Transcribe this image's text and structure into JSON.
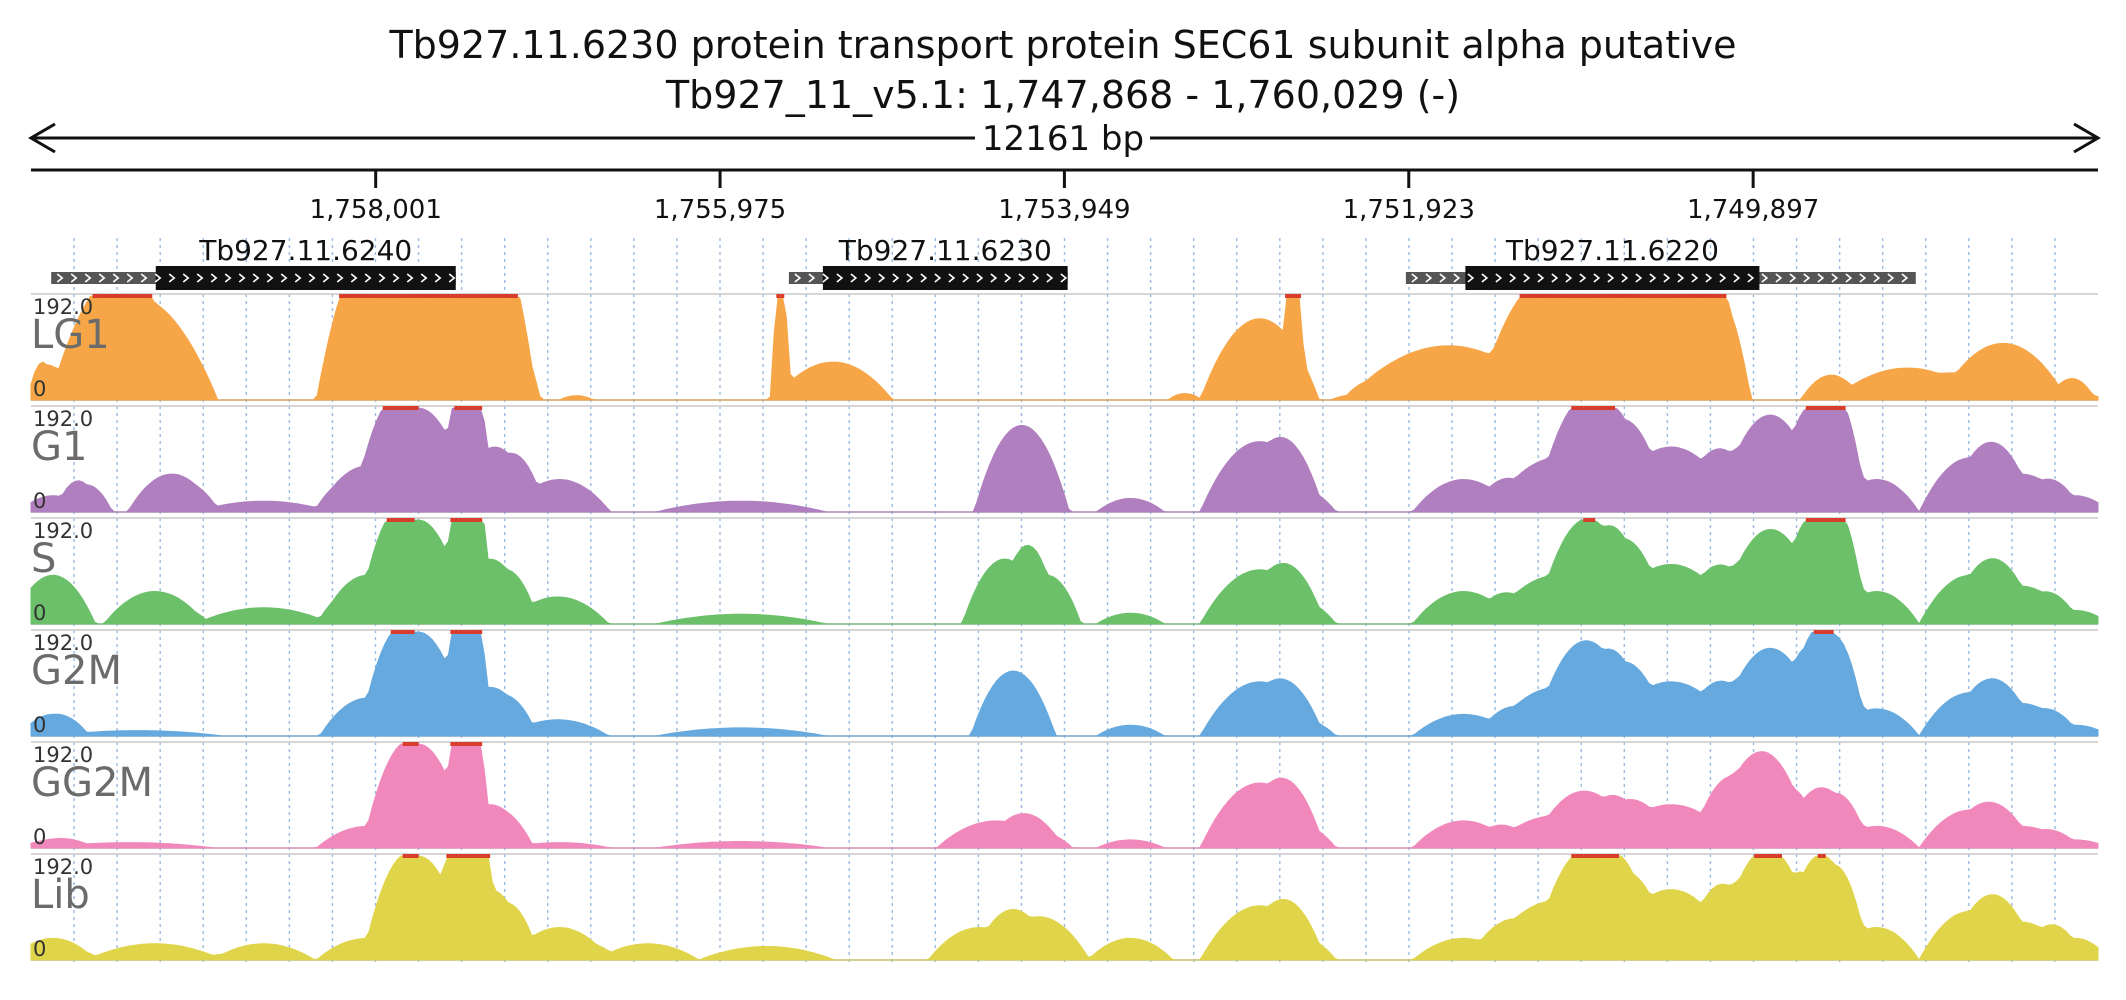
{
  "title": {
    "line1": "Tb927.11.6230  protein transport protein SEC61 subunit alpha  putative",
    "line2": "Tb927_11_v5.1: 1,747,868 - 1,760,029 (-)"
  },
  "span_label": "12161 bp",
  "ticks": [
    {
      "label": "1,758,001",
      "pos": 1758001
    },
    {
      "label": "1,755,975",
      "pos": 1755975
    },
    {
      "label": "1,753,949",
      "pos": 1753949
    },
    {
      "label": "1,751,923",
      "pos": 1751923
    },
    {
      "label": "1,749,897",
      "pos": 1749897
    }
  ],
  "region": {
    "start": 1747868,
    "end": 1760029,
    "strand": "-"
  },
  "genes": [
    {
      "name": "Tb927.11.6240",
      "cds_start": 1757530,
      "cds_end": 1759295,
      "utr_start": 1757530,
      "utr_end": 1759910
    },
    {
      "name": "Tb927.11.6230",
      "cds_start": 1753930,
      "cds_end": 1755370,
      "utr_start": 1753930,
      "utr_end": 1755570
    },
    {
      "name": "Tb927.11.6220",
      "cds_start": 1749860,
      "cds_end": 1751590,
      "utr_start": 1748940,
      "utr_end": 1751940
    }
  ],
  "scale": {
    "max_label": "192.0",
    "min_label": "0"
  },
  "tracks": [
    {
      "name": "LG1",
      "color": "#f6a646"
    },
    {
      "name": "G1",
      "color": "#b07fbf"
    },
    {
      "name": "S",
      "color": "#6cc06a"
    },
    {
      "name": "G2M",
      "color": "#66a9de"
    },
    {
      "name": "GG2M",
      "color": "#f188bb"
    },
    {
      "name": "Lib",
      "color": "#e0d54a"
    }
  ],
  "colors": {
    "overflow": "#d83b2a",
    "gridline": "#9bbbe0",
    "gene_box": "#111111",
    "utr_box": "#555555"
  },
  "chart_data": {
    "type": "area",
    "xlabel": "",
    "ylabel": "",
    "xlim": [
      1760029,
      1747868
    ],
    "ylim": [
      0,
      192
    ],
    "series": [
      {
        "name": "LG1",
        "peaks": [
          [
            1759960,
            70,
            90
          ],
          [
            1759600,
            50,
            300
          ],
          [
            1759430,
            192,
            500
          ],
          [
            1758000,
            300,
            350
          ],
          [
            1757700,
            150,
            500
          ],
          [
            1757480,
            192,
            400
          ],
          [
            1757330,
            192,
            300
          ],
          [
            1756820,
            8,
            100
          ],
          [
            1755620,
            192,
            60
          ],
          [
            1755310,
            70,
            350
          ],
          [
            1753240,
            12,
            100
          ],
          [
            1752800,
            150,
            350
          ],
          [
            1752600,
            192,
            60
          ],
          [
            1752280,
            8,
            100
          ],
          [
            1751690,
            100,
            600
          ],
          [
            1751050,
            110,
            400
          ],
          [
            1750720,
            160,
            700
          ],
          [
            1750500,
            192,
            300
          ],
          [
            1750110,
            192,
            200
          ],
          [
            1749470,
            30,
            150
          ],
          [
            1749060,
            15,
            250
          ],
          [
            1748710,
            50,
            900
          ],
          [
            1748400,
            60,
            300
          ],
          [
            1748000,
            20,
            100
          ]
        ]
      },
      {
        "name": "G1",
        "peaks": [
          [
            1759900,
            30,
            200
          ],
          [
            1759700,
            50,
            150
          ],
          [
            1759200,
            70,
            260
          ],
          [
            1758660,
            20,
            400
          ],
          [
            1758050,
            85,
            300
          ],
          [
            1757750,
            192,
            330
          ],
          [
            1757460,
            160,
            120
          ],
          [
            1757300,
            120,
            250
          ],
          [
            1756920,
            60,
            300
          ],
          [
            1755850,
            20,
            500
          ],
          [
            1754200,
            160,
            280
          ],
          [
            1753560,
            25,
            200
          ],
          [
            1752800,
            130,
            350
          ],
          [
            1752550,
            40,
            200
          ],
          [
            1751600,
            60,
            300
          ],
          [
            1751050,
            100,
            400
          ],
          [
            1750800,
            140,
            300
          ],
          [
            1750380,
            120,
            400
          ],
          [
            1749900,
            100,
            300
          ],
          [
            1749630,
            110,
            400
          ],
          [
            1749460,
            150,
            200
          ],
          [
            1749170,
            60,
            250
          ],
          [
            1748620,
            100,
            300
          ],
          [
            1748320,
            70,
            300
          ],
          [
            1748000,
            30,
            200
          ]
        ]
      },
      {
        "name": "S",
        "peaks": [
          [
            1759900,
            90,
            250
          ],
          [
            1759300,
            60,
            300
          ],
          [
            1758660,
            30,
            400
          ],
          [
            1758050,
            90,
            280
          ],
          [
            1757750,
            192,
            300
          ],
          [
            1757460,
            192,
            120
          ],
          [
            1757330,
            120,
            250
          ],
          [
            1756930,
            50,
            300
          ],
          [
            1755850,
            18,
            500
          ],
          [
            1754300,
            120,
            250
          ],
          [
            1754050,
            90,
            200
          ],
          [
            1753560,
            20,
            200
          ],
          [
            1752800,
            100,
            350
          ],
          [
            1752550,
            40,
            200
          ],
          [
            1751600,
            60,
            300
          ],
          [
            1751050,
            90,
            400
          ],
          [
            1750800,
            130,
            300
          ],
          [
            1750380,
            110,
            400
          ],
          [
            1749900,
            95,
            300
          ],
          [
            1749630,
            110,
            400
          ],
          [
            1749460,
            150,
            200
          ],
          [
            1749170,
            60,
            250
          ],
          [
            1748620,
            90,
            300
          ],
          [
            1748320,
            70,
            300
          ],
          [
            1748000,
            25,
            200
          ]
        ]
      },
      {
        "name": "G2M",
        "peaks": [
          [
            1759900,
            40,
            200
          ],
          [
            1759400,
            10,
            500
          ],
          [
            1758050,
            70,
            280
          ],
          [
            1757750,
            192,
            300
          ],
          [
            1757460,
            180,
            120
          ],
          [
            1757330,
            90,
            250
          ],
          [
            1756930,
            30,
            300
          ],
          [
            1755850,
            15,
            500
          ],
          [
            1754250,
            120,
            250
          ],
          [
            1753560,
            20,
            200
          ],
          [
            1752800,
            100,
            350
          ],
          [
            1752550,
            30,
            200
          ],
          [
            1751600,
            40,
            300
          ],
          [
            1751050,
            90,
            400
          ],
          [
            1750800,
            110,
            300
          ],
          [
            1750380,
            100,
            400
          ],
          [
            1749900,
            90,
            300
          ],
          [
            1749630,
            100,
            400
          ],
          [
            1749460,
            120,
            200
          ],
          [
            1749170,
            50,
            250
          ],
          [
            1748620,
            80,
            300
          ],
          [
            1748320,
            60,
            300
          ],
          [
            1748000,
            20,
            200
          ]
        ]
      },
      {
        "name": "GG2M",
        "peaks": [
          [
            1759900,
            15,
            200
          ],
          [
            1759450,
            10,
            500
          ],
          [
            1758050,
            40,
            300
          ],
          [
            1757750,
            192,
            300
          ],
          [
            1757460,
            192,
            120
          ],
          [
            1757330,
            80,
            250
          ],
          [
            1756920,
            10,
            300
          ],
          [
            1755850,
            12,
            500
          ],
          [
            1754350,
            50,
            350
          ],
          [
            1754100,
            30,
            200
          ],
          [
            1753560,
            15,
            200
          ],
          [
            1752800,
            120,
            350
          ],
          [
            1752550,
            40,
            200
          ],
          [
            1751600,
            50,
            300
          ],
          [
            1751050,
            60,
            400
          ],
          [
            1750800,
            60,
            300
          ],
          [
            1750380,
            80,
            400
          ],
          [
            1749900,
            140,
            300
          ],
          [
            1749630,
            60,
            400
          ],
          [
            1749460,
            60,
            200
          ],
          [
            1749170,
            40,
            250
          ],
          [
            1748620,
            70,
            300
          ],
          [
            1748320,
            40,
            300
          ],
          [
            1748000,
            15,
            200
          ]
        ]
      },
      {
        "name": "Lib",
        "peaks": [
          [
            1759900,
            40,
            250
          ],
          [
            1759300,
            30,
            400
          ],
          [
            1758660,
            30,
            300
          ],
          [
            1758050,
            40,
            300
          ],
          [
            1757750,
            192,
            300
          ],
          [
            1757460,
            192,
            150
          ],
          [
            1757330,
            130,
            250
          ],
          [
            1756920,
            60,
            300
          ],
          [
            1756400,
            30,
            300
          ],
          [
            1755700,
            25,
            400
          ],
          [
            1754450,
            60,
            300
          ],
          [
            1754100,
            80,
            300
          ],
          [
            1753560,
            40,
            250
          ],
          [
            1752800,
            100,
            350
          ],
          [
            1752550,
            40,
            200
          ],
          [
            1751600,
            40,
            300
          ],
          [
            1751050,
            110,
            450
          ],
          [
            1750800,
            120,
            300
          ],
          [
            1750380,
            130,
            400
          ],
          [
            1749900,
            130,
            300
          ],
          [
            1749630,
            110,
            400
          ],
          [
            1749460,
            100,
            200
          ],
          [
            1749170,
            60,
            250
          ],
          [
            1748620,
            90,
            300
          ],
          [
            1748320,
            70,
            300
          ],
          [
            1748000,
            40,
            200
          ]
        ]
      }
    ]
  }
}
